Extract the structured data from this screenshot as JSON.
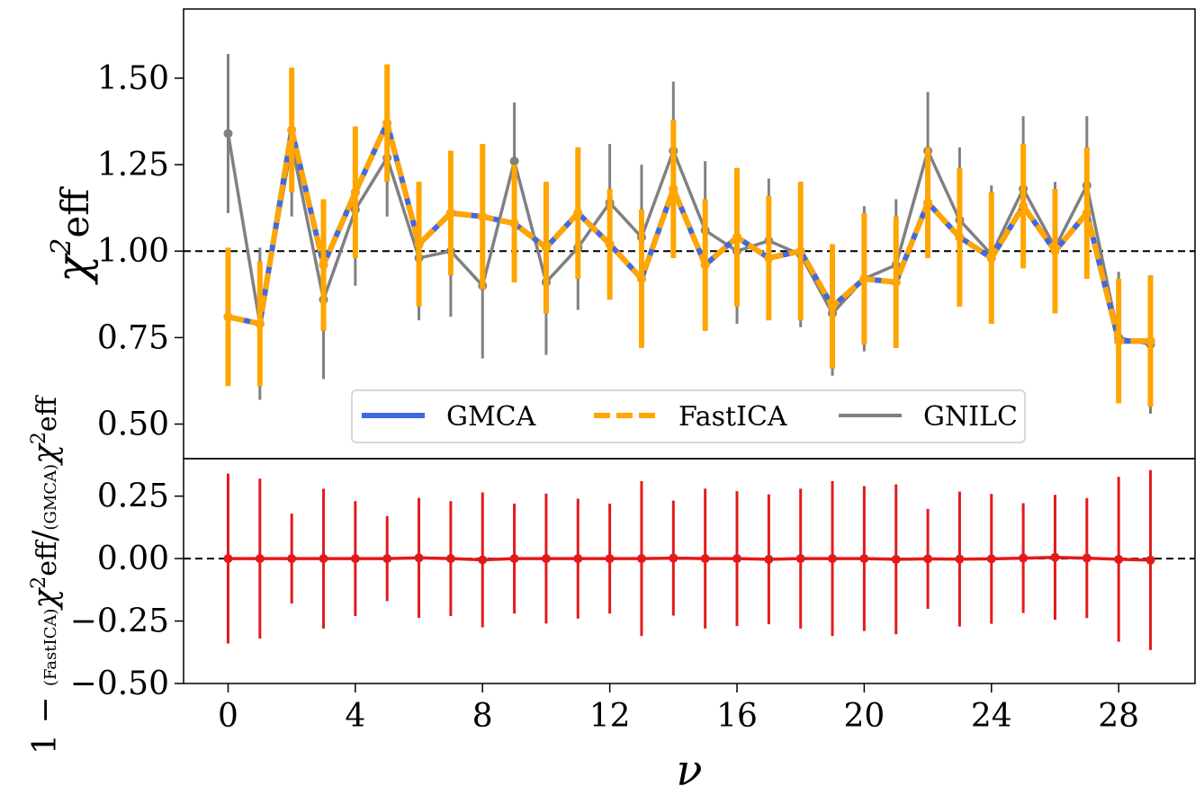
{
  "chart_data": {
    "type": "line",
    "xlabel": "ν",
    "x": [
      0,
      1,
      2,
      3,
      4,
      5,
      6,
      7,
      8,
      9,
      10,
      11,
      12,
      13,
      14,
      15,
      16,
      17,
      18,
      19,
      20,
      21,
      22,
      23,
      24,
      25,
      26,
      27,
      28,
      29
    ],
    "xticks": [
      "0",
      "4",
      "8",
      "12",
      "16",
      "20",
      "24",
      "28"
    ],
    "xtick_values": [
      0,
      4,
      8,
      12,
      16,
      20,
      24,
      28
    ],
    "xlim": [
      -1.4,
      30.4
    ],
    "panels": [
      {
        "name": "top",
        "ylabel": "χ²eff",
        "ylim": [
          0.4,
          1.7
        ],
        "yticks": [
          "0.50",
          "0.75",
          "1.00",
          "1.25",
          "1.50"
        ],
        "ytick_values": [
          0.5,
          0.75,
          1.0,
          1.25,
          1.5
        ],
        "reference_line": 1.0,
        "legend": {
          "location": "lower-center",
          "entries": [
            "GMCA",
            "FastICA",
            "GNILC"
          ]
        },
        "series": [
          {
            "name": "GNILC",
            "color": "#808080",
            "values": [
              1.34,
              0.79,
              1.31,
              0.86,
              1.12,
              1.27,
              0.98,
              1.0,
              0.9,
              1.26,
              0.91,
              1.01,
              1.14,
              1.04,
              1.29,
              1.06,
              1.0,
              1.03,
              0.99,
              0.82,
              0.92,
              0.96,
              1.29,
              1.09,
              0.99,
              1.18,
              1.01,
              1.19,
              0.75,
              0.73
            ],
            "errors": [
              0.23,
              0.22,
              0.21,
              0.23,
              0.22,
              0.17,
              0.18,
              0.19,
              0.21,
              0.17,
              0.21,
              0.18,
              0.17,
              0.21,
              0.2,
              0.2,
              0.21,
              0.18,
              0.21,
              0.18,
              0.21,
              0.19,
              0.17,
              0.21,
              0.2,
              0.21,
              0.19,
              0.2,
              0.19,
              0.2
            ]
          },
          {
            "name": "GMCA",
            "color": "#4169e1",
            "values": [
              0.81,
              0.79,
              1.35,
              0.96,
              1.17,
              1.37,
              1.02,
              1.11,
              1.1,
              1.08,
              1.01,
              1.11,
              1.02,
              0.92,
              1.18,
              0.96,
              1.04,
              0.98,
              1.0,
              0.84,
              0.92,
              0.91,
              1.14,
              1.04,
              0.98,
              1.13,
              1.0,
              1.11,
              0.74,
              0.74
            ],
            "errors": [
              0.19,
              0.18,
              0.18,
              0.19,
              0.19,
              0.17,
              0.18,
              0.18,
              0.2,
              0.17,
              0.19,
              0.19,
              0.16,
              0.2,
              0.2,
              0.19,
              0.2,
              0.18,
              0.2,
              0.18,
              0.19,
              0.19,
              0.16,
              0.2,
              0.19,
              0.18,
              0.18,
              0.19,
              0.18,
              0.19
            ]
          },
          {
            "name": "FastICA",
            "color": "#ffa500",
            "values": [
              0.81,
              0.79,
              1.35,
              0.96,
              1.17,
              1.37,
              1.02,
              1.11,
              1.1,
              1.08,
              1.01,
              1.11,
              1.02,
              0.92,
              1.18,
              0.96,
              1.04,
              0.98,
              1.0,
              0.84,
              0.92,
              0.91,
              1.14,
              1.04,
              0.98,
              1.13,
              1.0,
              1.11,
              0.74,
              0.74
            ],
            "errors": [
              0.2,
              0.18,
              0.18,
              0.19,
              0.19,
              0.17,
              0.18,
              0.18,
              0.21,
              0.17,
              0.19,
              0.19,
              0.16,
              0.2,
              0.2,
              0.19,
              0.2,
              0.18,
              0.2,
              0.18,
              0.19,
              0.19,
              0.16,
              0.2,
              0.19,
              0.18,
              0.18,
              0.19,
              0.18,
              0.19
            ]
          }
        ]
      },
      {
        "name": "bottom",
        "ylabel": "1 − (FastICA)χ²eff / (GMCA)χ²eff",
        "ylim": [
          -0.5,
          0.4
        ],
        "yticks": [
          "−0.50",
          "−0.25",
          "0.00",
          "0.25"
        ],
        "ytick_values": [
          -0.5,
          -0.25,
          0.0,
          0.25
        ],
        "reference_line": 0.0,
        "series": [
          {
            "name": "ratio",
            "color": "#e31a1c",
            "values": [
              0,
              0,
              0,
              0,
              0,
              0,
              0.003,
              0,
              -0.005,
              0,
              0,
              0,
              0,
              0,
              0.002,
              0,
              0,
              -0.003,
              0,
              0,
              0,
              -0.003,
              -0.001,
              -0.002,
              -0.001,
              0.002,
              0.005,
              0.002,
              -0.003,
              -0.006
            ],
            "errors": [
              0.34,
              0.32,
              0.18,
              0.28,
              0.23,
              0.17,
              0.24,
              0.23,
              0.27,
              0.22,
              0.26,
              0.24,
              0.22,
              0.31,
              0.23,
              0.28,
              0.27,
              0.26,
              0.28,
              0.31,
              0.29,
              0.3,
              0.2,
              0.27,
              0.26,
              0.22,
              0.25,
              0.24,
              0.33,
              0.36
            ]
          }
        ]
      }
    ]
  }
}
